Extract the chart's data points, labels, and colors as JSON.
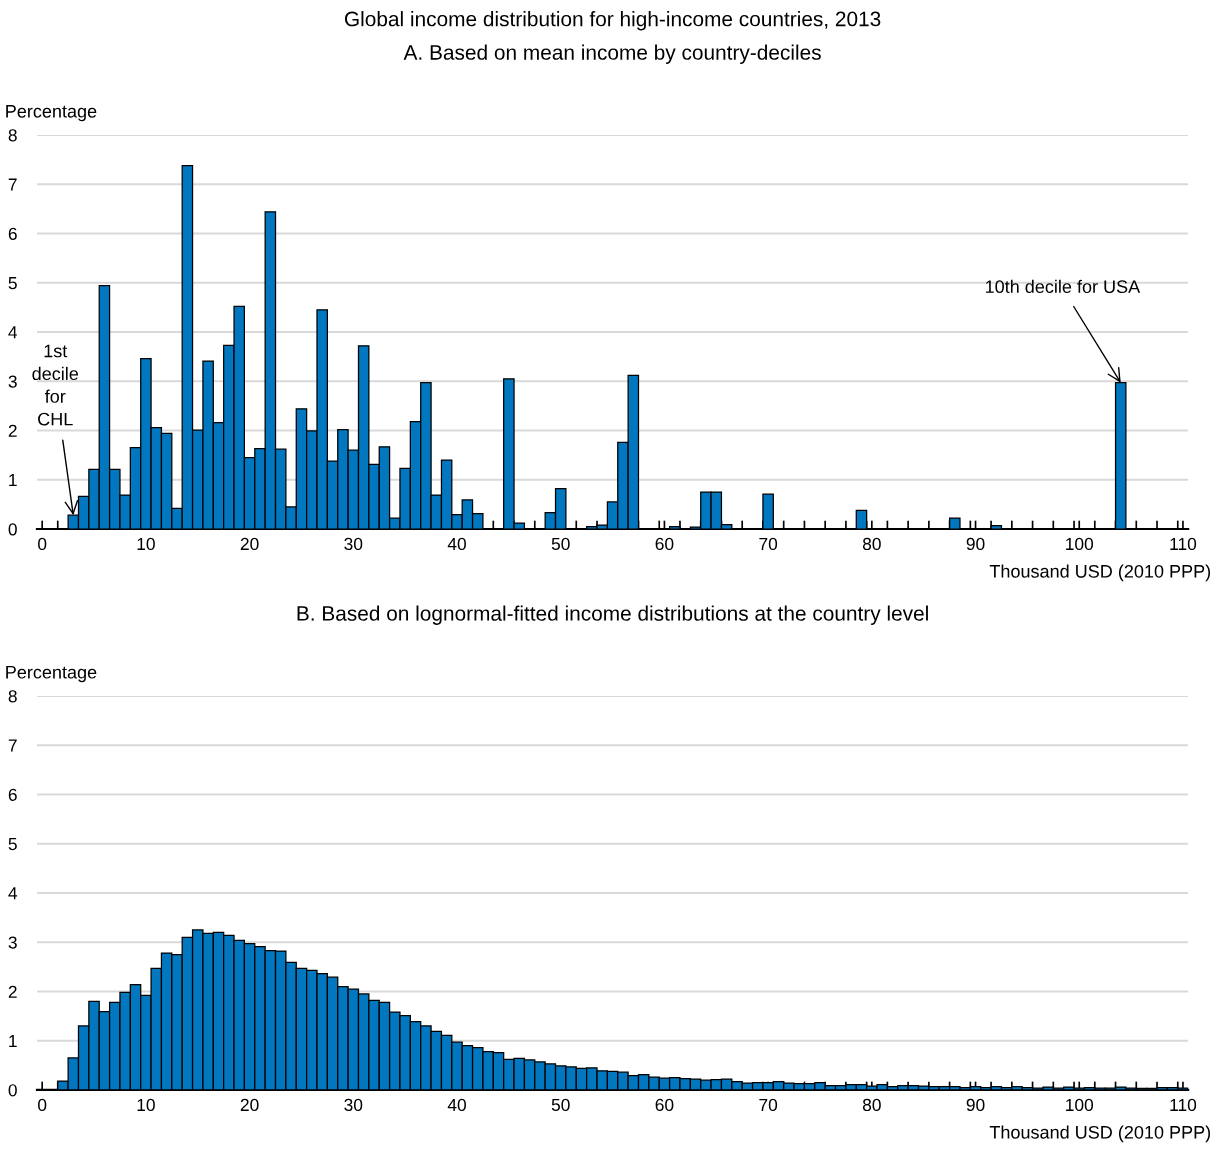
{
  "chart_data": [
    {
      "type": "histogram",
      "title": "Global income distribution for high-income countries, 2013",
      "subtitle": "A. Based on mean income by country-deciles",
      "ylabel": "Percentage",
      "xlabel": "Thousand USD (2010 PPP)",
      "color": "#0077bf",
      "bins": [
        0.5,
        1.5,
        2.5,
        3.5,
        4.5,
        5.5,
        6.5,
        7.5,
        8.5,
        9.5,
        10.5,
        11.5,
        12.5,
        13.5,
        14.5,
        15.5,
        16.5,
        17.5,
        18.5,
        19.5,
        20.5,
        21.5,
        22.5,
        23.5,
        24.5,
        25.5,
        26.5,
        27.5,
        28.5,
        29.5,
        30.5,
        31.5,
        32.5,
        33.5,
        34.5,
        35.5,
        36.5,
        37.5,
        38.5,
        39.5,
        40.5,
        41.5,
        42.5,
        43.5,
        44.5,
        45.5,
        46.5,
        47.5,
        48.5,
        49.5,
        50.5,
        51.5,
        52.5,
        53.5,
        54.5,
        55.5,
        56.5,
        57.5,
        58.5,
        59.5,
        60.5,
        61.5,
        62.5,
        63.5,
        64.5,
        65.5,
        66.5,
        67.5,
        68.5,
        69.5,
        70.5,
        71.5,
        72.5,
        73.5,
        74.5,
        75.5,
        76.5,
        77.5,
        78.5,
        79.5,
        80.5,
        81.5,
        82.5,
        83.5,
        84.5,
        85.5,
        86.5,
        87.5,
        88.5,
        89.5,
        90.5,
        91.5,
        92.5,
        93.5,
        94.5,
        95.5,
        96.5,
        97.5,
        98.5,
        99.5,
        100.5,
        101.5,
        102.5,
        103.5,
        104.5,
        105.5,
        106.5,
        107.5,
        108.5,
        109.5,
        110.5
      ],
      "values": [
        0,
        0,
        0.28,
        0.66,
        1.21,
        4.94,
        1.21,
        0.69,
        1.65,
        3.46,
        2.06,
        1.94,
        0.42,
        7.38,
        2.01,
        3.41,
        2.16,
        3.73,
        4.52,
        1.45,
        1.63,
        6.44,
        1.62,
        0.45,
        2.44,
        1.99,
        4.45,
        1.38,
        2.02,
        1.6,
        3.72,
        1.31,
        1.67,
        0.22,
        1.23,
        2.18,
        2.97,
        0.69,
        1.4,
        0.29,
        0.59,
        0.31,
        0,
        0,
        3.05,
        0.12,
        0,
        0,
        0.33,
        0.82,
        0,
        0,
        0.05,
        0.08,
        0.55,
        1.76,
        3.12,
        0,
        0,
        0,
        0.05,
        0,
        0.04,
        0.75,
        0.75,
        0.09,
        0,
        0,
        0,
        0.71,
        0,
        0,
        0,
        0,
        0,
        0,
        0,
        0,
        0.38,
        0,
        0,
        0,
        0,
        0,
        0,
        0,
        0,
        0.22,
        0,
        0,
        0,
        0.07,
        0,
        0,
        0,
        0,
        0,
        0,
        0,
        0,
        0,
        0,
        0,
        2.97,
        0,
        0,
        0,
        0,
        0,
        0
      ],
      "xlim": [
        -0.5,
        110.5
      ],
      "ylim": [
        0,
        8
      ],
      "yticks": [
        0,
        1,
        2,
        3,
        4,
        5,
        6,
        7,
        8
      ],
      "xticks": [
        0,
        {
          "value": 1.5,
          "label": null
        },
        {
          "value": 3.5,
          "label": null
        },
        {
          "value": 5.5,
          "label": null
        },
        {
          "value": 7.5,
          "label": null
        },
        {
          "value": 9.5,
          "label": null
        },
        10,
        {
          "value": 11.5,
          "label": null
        },
        {
          "value": 13.5,
          "label": null
        },
        {
          "value": 15.5,
          "label": null
        },
        {
          "value": 17.5,
          "label": null
        },
        {
          "value": 19.5,
          "label": null
        },
        20,
        {
          "value": 21.5,
          "label": null
        },
        {
          "value": 23.5,
          "label": null
        },
        {
          "value": 25.5,
          "label": null
        },
        {
          "value": 27.5,
          "label": null
        },
        {
          "value": 29.5,
          "label": null
        },
        30,
        {
          "value": 31.5,
          "label": null
        },
        {
          "value": 33.5,
          "label": null
        },
        {
          "value": 35.5,
          "label": null
        },
        {
          "value": 37.5,
          "label": null
        },
        {
          "value": 39.5,
          "label": null
        },
        40,
        {
          "value": 41.5,
          "label": null
        },
        {
          "value": 43.5,
          "label": null
        },
        {
          "value": 45.5,
          "label": null
        },
        {
          "value": 47.5,
          "label": null
        },
        {
          "value": 49.5,
          "label": null
        },
        50,
        {
          "value": 51.5,
          "label": null
        },
        {
          "value": 53.5,
          "label": null
        },
        {
          "value": 55.5,
          "label": null
        },
        {
          "value": 57.5,
          "label": null
        },
        {
          "value": 59.5,
          "label": null
        },
        60,
        {
          "value": 61.5,
          "label": null
        },
        {
          "value": 63.5,
          "label": null
        },
        {
          "value": 65.5,
          "label": null
        },
        {
          "value": 67.5,
          "label": null
        },
        {
          "value": 69.5,
          "label": null
        },
        70,
        {
          "value": 71.5,
          "label": null
        },
        {
          "value": 73.5,
          "label": null
        },
        {
          "value": 75.5,
          "label": null
        },
        {
          "value": 77.5,
          "label": null
        },
        {
          "value": 79.5,
          "label": null
        },
        80,
        {
          "value": 81.5,
          "label": null
        },
        {
          "value": 83.5,
          "label": null
        },
        {
          "value": 85.5,
          "label": null
        },
        {
          "value": 87.5,
          "label": null
        },
        {
          "value": 89.5,
          "label": null
        },
        90,
        {
          "value": 91.5,
          "label": null
        },
        {
          "value": 93.5,
          "label": null
        },
        {
          "value": 95.5,
          "label": null
        },
        {
          "value": 97.5,
          "label": null
        },
        {
          "value": 99.5,
          "label": null
        },
        100,
        {
          "value": 101.5,
          "label": null
        },
        {
          "value": 103.5,
          "label": null
        },
        {
          "value": 105.5,
          "label": null
        },
        {
          "value": 107.5,
          "label": null
        },
        {
          "value": 109.5,
          "label": null
        },
        110
      ],
      "grid": "y",
      "annotations": [
        {
          "text": "1st\ndecile\nfor\nCHL",
          "x": 3,
          "y": 0.28
        },
        {
          "text": "10th decile for USA",
          "x": 104,
          "y": 2.97
        }
      ]
    },
    {
      "type": "histogram",
      "title": "B. Based on lognormal-fitted income distributions at the country level",
      "ylabel": "Percentage",
      "xlabel": "Thousand USD (2010 PPP)",
      "color": "#0077bf",
      "bins": [
        0.5,
        1.5,
        2.5,
        3.5,
        4.5,
        5.5,
        6.5,
        7.5,
        8.5,
        9.5,
        10.5,
        11.5,
        12.5,
        13.5,
        14.5,
        15.5,
        16.5,
        17.5,
        18.5,
        19.5,
        20.5,
        21.5,
        22.5,
        23.5,
        24.5,
        25.5,
        26.5,
        27.5,
        28.5,
        29.5,
        30.5,
        31.5,
        32.5,
        33.5,
        34.5,
        35.5,
        36.5,
        37.5,
        38.5,
        39.5,
        40.5,
        41.5,
        42.5,
        43.5,
        44.5,
        45.5,
        46.5,
        47.5,
        48.5,
        49.5,
        50.5,
        51.5,
        52.5,
        53.5,
        54.5,
        55.5,
        56.5,
        57.5,
        58.5,
        59.5,
        60.5,
        61.5,
        62.5,
        63.5,
        64.5,
        65.5,
        66.5,
        67.5,
        68.5,
        69.5,
        70.5,
        71.5,
        72.5,
        73.5,
        74.5,
        75.5,
        76.5,
        77.5,
        78.5,
        79.5,
        80.5,
        81.5,
        82.5,
        83.5,
        84.5,
        85.5,
        86.5,
        87.5,
        88.5,
        89.5,
        90.5,
        91.5,
        92.5,
        93.5,
        94.5,
        95.5,
        96.5,
        97.5,
        98.5,
        99.5,
        100.5,
        101.5,
        102.5,
        103.5,
        104.5,
        105.5,
        106.5,
        107.5,
        108.5,
        109.5,
        110.5
      ],
      "values": [
        0,
        0.18,
        0.65,
        1.3,
        1.8,
        1.59,
        1.78,
        1.98,
        2.14,
        1.92,
        2.47,
        2.78,
        2.75,
        3.1,
        3.25,
        3.18,
        3.2,
        3.14,
        3.04,
        2.97,
        2.91,
        2.83,
        2.82,
        2.59,
        2.47,
        2.43,
        2.36,
        2.29,
        2.1,
        2.05,
        1.95,
        1.82,
        1.78,
        1.58,
        1.51,
        1.39,
        1.3,
        1.19,
        1.11,
        0.97,
        0.9,
        0.86,
        0.78,
        0.76,
        0.62,
        0.64,
        0.61,
        0.57,
        0.53,
        0.49,
        0.47,
        0.44,
        0.45,
        0.39,
        0.38,
        0.36,
        0.29,
        0.31,
        0.26,
        0.24,
        0.25,
        0.23,
        0.22,
        0.2,
        0.21,
        0.22,
        0.17,
        0.14,
        0.15,
        0.15,
        0.17,
        0.14,
        0.13,
        0.13,
        0.15,
        0.09,
        0.09,
        0.11,
        0.11,
        0.08,
        0.11,
        0.07,
        0.09,
        0.09,
        0.08,
        0.07,
        0.07,
        0.07,
        0.05,
        0.07,
        0.05,
        0.07,
        0.05,
        0.07,
        0.05,
        0.04,
        0.06,
        0.04,
        0.06,
        0.04,
        0.05,
        0.04,
        0.04,
        0.06,
        0.04,
        0.03,
        0.03,
        0.05,
        0.05,
        0.04
      ],
      "xlim": [
        -0.5,
        110.5
      ],
      "ylim": [
        0,
        8
      ],
      "yticks": [
        0,
        1,
        2,
        3,
        4,
        5,
        6,
        7,
        8
      ],
      "xticks": [
        0,
        {
          "value": 1.5,
          "label": null
        },
        {
          "value": 3.5,
          "label": null
        },
        {
          "value": 5.5,
          "label": null
        },
        {
          "value": 7.5,
          "label": null
        },
        {
          "value": 9.5,
          "label": null
        },
        10,
        {
          "value": 11.5,
          "label": null
        },
        {
          "value": 13.5,
          "label": null
        },
        {
          "value": 15.5,
          "label": null
        },
        {
          "value": 17.5,
          "label": null
        },
        {
          "value": 19.5,
          "label": null
        },
        20,
        {
          "value": 21.5,
          "label": null
        },
        {
          "value": 23.5,
          "label": null
        },
        {
          "value": 25.5,
          "label": null
        },
        {
          "value": 27.5,
          "label": null
        },
        {
          "value": 29.5,
          "label": null
        },
        30,
        {
          "value": 31.5,
          "label": null
        },
        {
          "value": 33.5,
          "label": null
        },
        {
          "value": 35.5,
          "label": null
        },
        {
          "value": 37.5,
          "label": null
        },
        {
          "value": 39.5,
          "label": null
        },
        40,
        {
          "value": 41.5,
          "label": null
        },
        {
          "value": 43.5,
          "label": null
        },
        {
          "value": 45.5,
          "label": null
        },
        {
          "value": 47.5,
          "label": null
        },
        {
          "value": 49.5,
          "label": null
        },
        50,
        {
          "value": 51.5,
          "label": null
        },
        {
          "value": 53.5,
          "label": null
        },
        {
          "value": 55.5,
          "label": null
        },
        {
          "value": 57.5,
          "label": null
        },
        {
          "value": 59.5,
          "label": null
        },
        60,
        {
          "value": 61.5,
          "label": null
        },
        {
          "value": 63.5,
          "label": null
        },
        {
          "value": 65.5,
          "label": null
        },
        {
          "value": 67.5,
          "label": null
        },
        {
          "value": 69.5,
          "label": null
        },
        70,
        {
          "value": 71.5,
          "label": null
        },
        {
          "value": 73.5,
          "label": null
        },
        {
          "value": 75.5,
          "label": null
        },
        {
          "value": 77.5,
          "label": null
        },
        {
          "value": 79.5,
          "label": null
        },
        80,
        {
          "value": 81.5,
          "label": null
        },
        {
          "value": 83.5,
          "label": null
        },
        {
          "value": 85.5,
          "label": null
        },
        {
          "value": 87.5,
          "label": null
        },
        {
          "value": 89.5,
          "label": null
        },
        90,
        {
          "value": 91.5,
          "label": null
        },
        {
          "value": 93.5,
          "label": null
        },
        {
          "value": 95.5,
          "label": null
        },
        {
          "value": 97.5,
          "label": null
        },
        {
          "value": 99.5,
          "label": null
        },
        100,
        {
          "value": 101.5,
          "label": null
        },
        {
          "value": 103.5,
          "label": null
        },
        {
          "value": 105.5,
          "label": null
        },
        {
          "value": 107.5,
          "label": null
        },
        {
          "value": 109.5,
          "label": null
        },
        110
      ],
      "grid": "y"
    }
  ]
}
